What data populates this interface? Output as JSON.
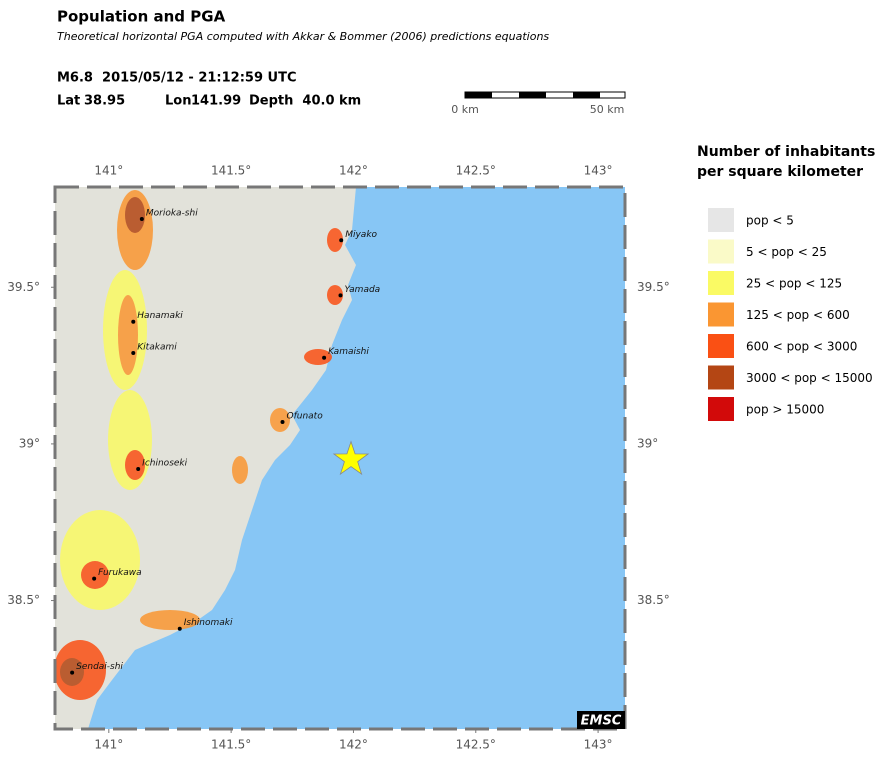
{
  "header": {
    "title": "Population and PGA",
    "subtitle": "Theoretical horizontal PGA computed with Akkar & Bommer (2006) predictions equations",
    "event": "M6.8  2015/05/12 - 21:12:59 UTC",
    "lat": {
      "label": "Lat",
      "value": 38.95
    },
    "lon": {
      "label": "Lon",
      "value": 141.99
    },
    "depth": "Depth  40.0 km"
  },
  "scale_bar": {
    "labels": [
      "0 km",
      "50 km"
    ]
  },
  "map": {
    "xlim": [
      140.78,
      143.11
    ],
    "ylim": [
      38.09,
      39.82
    ],
    "xticks": [
      {
        "value": 141,
        "label": "141°"
      },
      {
        "value": 141.5,
        "label": "141.5°"
      },
      {
        "value": 142,
        "label": "142°"
      },
      {
        "value": 142.5,
        "label": "142.5°"
      },
      {
        "value": 143,
        "label": "143°"
      }
    ],
    "yticks": [
      {
        "value": 39.5,
        "label": "39.5°"
      },
      {
        "value": 39,
        "label": "39°"
      },
      {
        "value": 38.5,
        "label": "38.5°"
      }
    ],
    "epicenter_color": "#ffff00",
    "cities": [
      {
        "name": "Morioka-shi",
        "lon": 141.135,
        "lat": 39.718
      },
      {
        "name": "Miyako",
        "lon": 141.95,
        "lat": 39.65
      },
      {
        "name": "Yamada",
        "lon": 141.947,
        "lat": 39.474
      },
      {
        "name": "Hanamaki",
        "lon": 141.1,
        "lat": 39.39
      },
      {
        "name": "Kitakami",
        "lon": 141.1,
        "lat": 39.29
      },
      {
        "name": "Kamaishi",
        "lon": 141.88,
        "lat": 39.275
      },
      {
        "name": "Ofunato",
        "lon": 141.71,
        "lat": 39.07
      },
      {
        "name": "Ichinoseki",
        "lon": 141.12,
        "lat": 38.92
      },
      {
        "name": "Furukawa",
        "lon": 140.94,
        "lat": 38.57
      },
      {
        "name": "Ishinomaki",
        "lon": 141.29,
        "lat": 38.41
      },
      {
        "name": "Sendai-shi",
        "lon": 140.85,
        "lat": 38.27
      }
    ]
  },
  "legend": {
    "title": [
      "Number of inhabitants",
      "per square kilometer"
    ],
    "items": [
      {
        "label": "pop < 5",
        "color": "#e6e6e6"
      },
      {
        "label": "5 < pop < 25",
        "color": "#fafac8"
      },
      {
        "label": "25 < pop < 125",
        "color": "#fafa64"
      },
      {
        "label": "125 < pop < 600",
        "color": "#fa9632"
      },
      {
        "label": "600 < pop < 3000",
        "color": "#fa5014"
      },
      {
        "label": "3000 < pop < 15000",
        "color": "#b44614"
      },
      {
        "label": "pop > 15000",
        "color": "#d20a0a"
      }
    ]
  },
  "logo": "EMSC"
}
